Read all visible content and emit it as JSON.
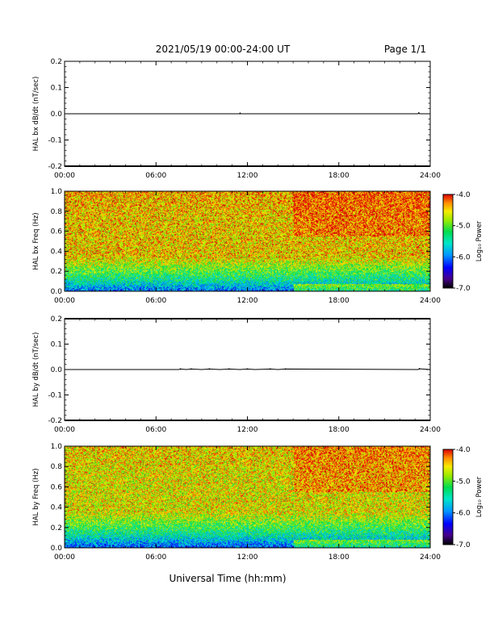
{
  "header": {
    "title": "2021/05/19  00:00-24:00 UT",
    "page": "Page 1/1"
  },
  "footer": {
    "xlabel": "Universal Time (hh:mm)"
  },
  "chart_data": [
    {
      "type": "line",
      "ylabel": "HAL bx dB/dt (nT/sec)",
      "ylim": [
        -0.2,
        0.2
      ],
      "yticks": [
        "0.2",
        "0.1",
        "0.0",
        "-0.1",
        "-0.2"
      ],
      "xlim": [
        0,
        24
      ],
      "xticks": [
        "00:00",
        "06:00",
        "12:00",
        "18:00",
        "24:00"
      ],
      "series": [
        {
          "x": [
            0,
            11.5,
            11.52,
            11.55,
            23.2,
            23.25,
            23.3,
            24
          ],
          "y": [
            0,
            0,
            0.002,
            0,
            0,
            0.003,
            0,
            0
          ]
        }
      ]
    },
    {
      "type": "heatmap",
      "ylabel": "HAL bx Freq (Hz)",
      "ylim": [
        0,
        1.0
      ],
      "yticks": [
        "1.0",
        "0.8",
        "0.6",
        "0.4",
        "0.2",
        "0.0"
      ],
      "xlim": [
        0,
        24
      ],
      "xticks": [
        "00:00",
        "06:00",
        "12:00",
        "18:00",
        "24:00"
      ],
      "colorbar": {
        "label": "Log₁₀ Power",
        "ticks": [
          "-4.0",
          "-5.0",
          "-6.0",
          "-7.0"
        ],
        "range": [
          -7.0,
          -4.0
        ]
      },
      "profile": {
        "top_power": -4.5,
        "bottom_power": -6.2,
        "late_low_freq_power": -4.8
      }
    },
    {
      "type": "line",
      "ylabel": "HAL by dB/dt (nT/sec)",
      "ylim": [
        -0.2,
        0.2
      ],
      "yticks": [
        "0.2",
        "0.1",
        "0.0",
        "-0.1",
        "-0.2"
      ],
      "xlim": [
        0,
        24
      ],
      "xticks": [
        "00:00",
        "06:00",
        "12:00",
        "18:00",
        "24:00"
      ],
      "series": [
        {
          "x": [
            0,
            7.5,
            7.6,
            8.0,
            8.3,
            9.0,
            9.5,
            10.2,
            10.8,
            11.5,
            12.0,
            12.5,
            13.5,
            14.0,
            14.5,
            23.2,
            23.3,
            24
          ],
          "y": [
            0,
            0,
            0.002,
            0,
            0.002,
            0,
            0.002,
            0,
            0.002,
            0,
            0.002,
            0,
            0.002,
            0,
            0.002,
            0,
            0.003,
            0
          ]
        }
      ]
    },
    {
      "type": "heatmap",
      "ylabel": "HAL by Freq (Hz)",
      "ylim": [
        0,
        1.0
      ],
      "yticks": [
        "1.0",
        "0.8",
        "0.6",
        "0.4",
        "0.2",
        "0.0"
      ],
      "xlim": [
        0,
        24
      ],
      "xticks": [
        "00:00",
        "06:00",
        "12:00",
        "18:00",
        "24:00"
      ],
      "colorbar": {
        "label": "Log₁₀ Power",
        "ticks": [
          "-4.0",
          "-5.0",
          "-6.0",
          "-7.0"
        ],
        "range": [
          -7.0,
          -4.0
        ]
      },
      "profile": {
        "top_power": -4.6,
        "bottom_power": -6.3,
        "late_low_freq_power": -4.9
      }
    }
  ]
}
